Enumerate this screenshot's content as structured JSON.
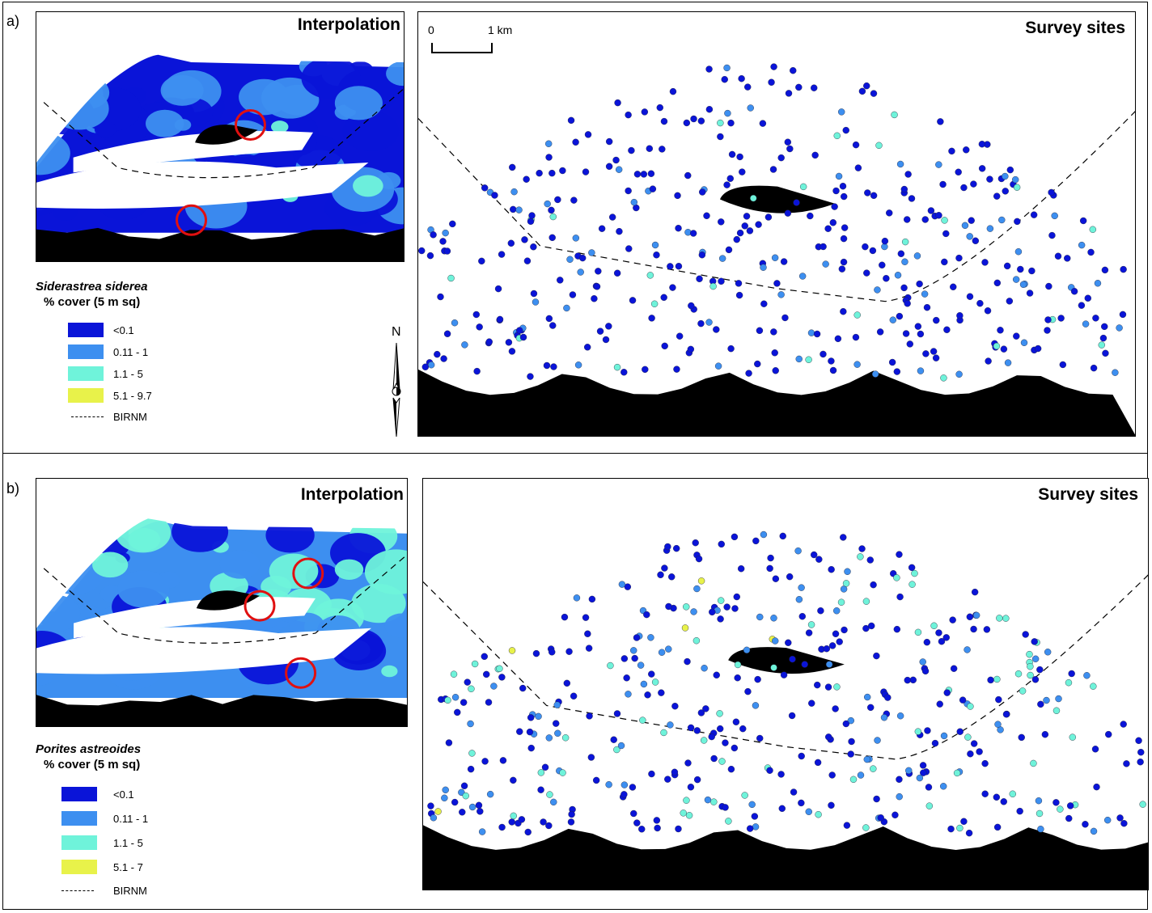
{
  "panels": [
    {
      "id": "a",
      "label": "a)",
      "interp_title": "Interpolation",
      "survey_title": "Survey sites",
      "legend": {
        "species": "Siderastrea siderea",
        "unit": "% cover (5 m sq)",
        "classes": [
          {
            "label": "<0.1",
            "color": "#0a14d8"
          },
          {
            "label": "0.11 - 1",
            "color": "#3d8ff0"
          },
          {
            "label": "1.1 - 5",
            "color": "#6ff3da"
          },
          {
            "label": "5.1 - 9.7",
            "color": "#e8f24a"
          }
        ],
        "boundary_label": "BIRNM"
      }
    },
    {
      "id": "b",
      "label": "b)",
      "interp_title": "Interpolation",
      "survey_title": "Survey sites",
      "legend": {
        "species": "Porites astreoides",
        "unit": "% cover (5 m sq)",
        "classes": [
          {
            "label": "<0.1",
            "color": "#0a14d8"
          },
          {
            "label": "0.11 - 1",
            "color": "#3d8ff0"
          },
          {
            "label": "1.1 - 5",
            "color": "#6ff3da"
          },
          {
            "label": "5.1 - 7",
            "color": "#e8f24a"
          }
        ],
        "boundary_label": "BIRNM"
      }
    }
  ],
  "scale_bar": {
    "start": "0",
    "end": "1 km"
  },
  "north_arrow": {
    "label": "N"
  },
  "colors": {
    "land": "#000000",
    "hotspot_circle": "#e01010"
  }
}
